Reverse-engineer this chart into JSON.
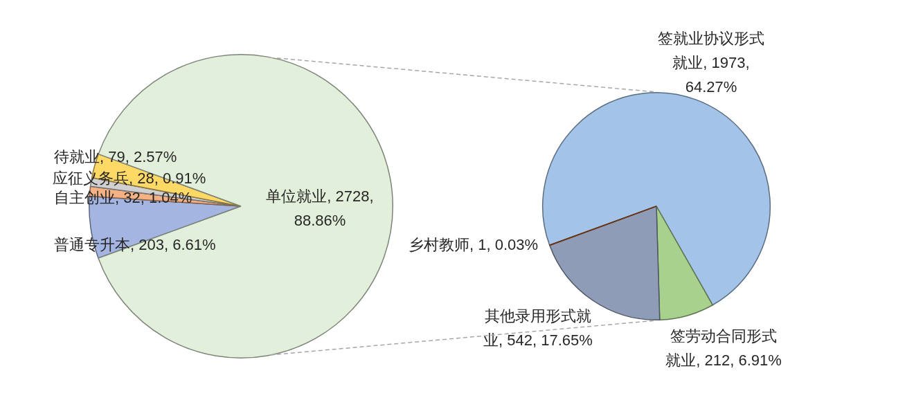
{
  "chart_data": [
    {
      "type": "pie",
      "categories": [
        "普通专升本",
        "自主创业",
        "应征义务兵",
        "待就业",
        "单位就业"
      ],
      "values": [
        203,
        32,
        28,
        79,
        2728
      ],
      "value_labels": [
        "203, 6.61%",
        "32, 1.04%",
        "28, 0.91%",
        "79, 2.57%",
        "2728, 88.86%"
      ],
      "colors": [
        "#a4b5e2",
        "#f4b183",
        "#d0d0d0",
        "#ffd966",
        "#e2efda"
      ]
    },
    {
      "type": "pie",
      "categories": [
        "签就业协议形式就业",
        "签劳动合同形式就业",
        "其他录用形式就业",
        "乡村教师"
      ],
      "values": [
        1973,
        212,
        542,
        1
      ],
      "value_labels": [
        "1973, 64.27%",
        "212, 6.91%",
        "542, 17.65%",
        "1, 0.03%"
      ],
      "colors": [
        "#a3c4e8",
        "#a9d18e",
        "#8e9cb8",
        "#c55a11"
      ]
    }
  ]
}
